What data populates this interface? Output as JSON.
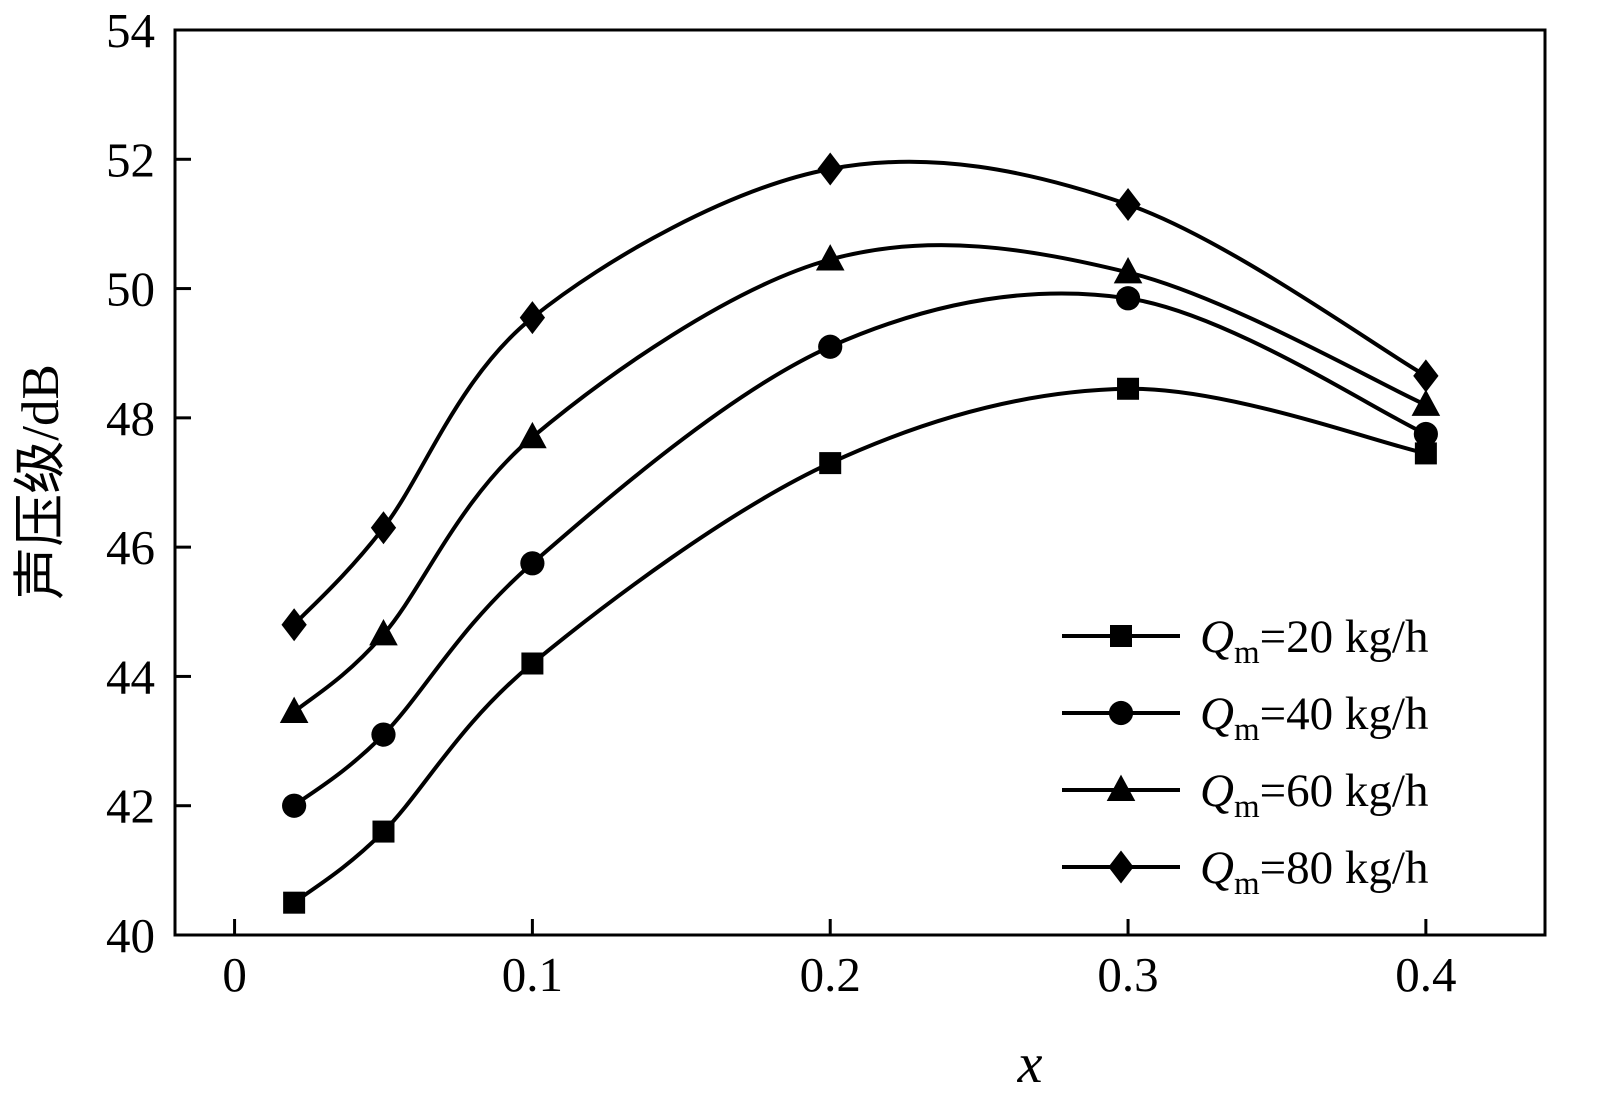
{
  "figure": {
    "background_color": "#ffffff",
    "foreground_color": "#000000"
  },
  "chart_data": {
    "type": "line",
    "title": "",
    "xlabel": "x",
    "ylabel": "声压级/dB",
    "xlim": [
      -0.02,
      0.44
    ],
    "ylim": [
      40,
      54
    ],
    "xticks": [
      0,
      0.1,
      0.2,
      0.3,
      0.4
    ],
    "yticks": [
      40,
      42,
      44,
      46,
      48,
      50,
      52,
      54
    ],
    "grid": false,
    "legend_position": "lower-right",
    "x": [
      0.02,
      0.05,
      0.1,
      0.2,
      0.3,
      0.4
    ],
    "series": [
      {
        "name": "Qm=20 kg/h",
        "marker": "square",
        "values": [
          40.5,
          41.6,
          44.2,
          47.3,
          48.45,
          47.45
        ],
        "legend": {
          "symbol": "Q",
          "subscript": "m",
          "suffix": "=20 kg/h"
        }
      },
      {
        "name": "Qm=40 kg/h",
        "marker": "circle",
        "values": [
          42.0,
          43.1,
          45.75,
          49.1,
          49.85,
          47.75
        ],
        "legend": {
          "symbol": "Q",
          "subscript": "m",
          "suffix": "=40 kg/h"
        }
      },
      {
        "name": "Qm=60 kg/h",
        "marker": "triangle",
        "values": [
          43.45,
          44.65,
          47.7,
          50.45,
          50.25,
          48.2
        ],
        "legend": {
          "symbol": "Q",
          "subscript": "m",
          "suffix": "=60 kg/h"
        }
      },
      {
        "name": "Qm=80 kg/h",
        "marker": "diamond",
        "values": [
          44.8,
          46.3,
          49.55,
          51.85,
          51.3,
          48.65
        ],
        "legend": {
          "symbol": "Q",
          "subscript": "m",
          "suffix": "=80 kg/h"
        }
      }
    ]
  }
}
